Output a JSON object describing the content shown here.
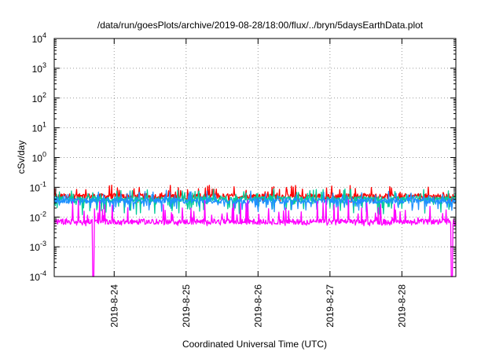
{
  "chart_data": {
    "type": "line",
    "title": "/data/run/goesPlots/archive/2019-08-28/18:00/flux/../bryn/5daysEarthData.plot",
    "xlabel": "Coordinated Universal Time (UTC)",
    "ylabel": "cSv/day",
    "yscale": "log",
    "ylim": [
      0.0001,
      10000
    ],
    "xlim": [
      "2019-08-23 04:00",
      "2019-08-28 18:00"
    ],
    "grid": true,
    "legend": "none",
    "y_ticks": [
      {
        "base": "10",
        "exp": "-4"
      },
      {
        "base": "10",
        "exp": "-3"
      },
      {
        "base": "10",
        "exp": "-2"
      },
      {
        "base": "10",
        "exp": "-1"
      },
      {
        "base": "10",
        "exp": "0"
      },
      {
        "base": "10",
        "exp": "1"
      },
      {
        "base": "10",
        "exp": "2"
      },
      {
        "base": "10",
        "exp": "3"
      },
      {
        "base": "10",
        "exp": "4"
      }
    ],
    "x_ticks": [
      "2019-8-24",
      "2019-8-25",
      "2019-8-26",
      "2019-8-27",
      "2019-8-28"
    ],
    "series": [
      {
        "color": "#ff0000",
        "baseline": 0.05,
        "spike_max": 0.12,
        "dip_min": 0.03
      },
      {
        "color": "#00cc99",
        "baseline": 0.04,
        "spike_max": 0.09,
        "dip_min": 0.012
      },
      {
        "color": "#1e90ff",
        "baseline": 0.035,
        "spike_max": 0.08,
        "dip_min": 0.015
      },
      {
        "color": "#ff00ff",
        "baseline": 0.007,
        "spike_max": 0.04,
        "dip_min": 0.005,
        "dropouts": [
          "2019-08-23 17:00",
          "2019-08-28 16:40"
        ],
        "dropout_value": 0.0001
      }
    ]
  }
}
